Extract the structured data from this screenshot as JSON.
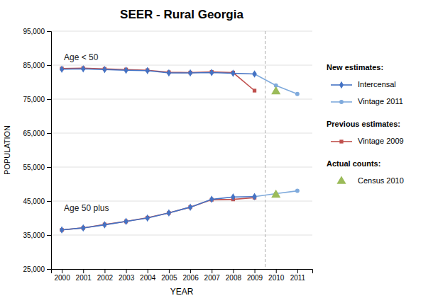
{
  "chart_data": {
    "type": "line",
    "title": "SEER - Rural Georgia",
    "x_label": "YEAR",
    "y_label": "POPULATION",
    "xlim": [
      1999.5,
      2011.7
    ],
    "xticks": [
      2000,
      2001,
      2002,
      2003,
      2004,
      2005,
      2006,
      2007,
      2008,
      2009,
      2010,
      2011
    ],
    "ylim": [
      25000,
      95000
    ],
    "yticks": [
      {
        "value": 25000,
        "label": "25,000"
      },
      {
        "value": 35000,
        "label": "35,000"
      },
      {
        "value": 45000,
        "label": "45,000"
      },
      {
        "value": 55000,
        "label": "55,000"
      },
      {
        "value": 65000,
        "label": "65,000"
      },
      {
        "value": 75000,
        "label": "75,000"
      },
      {
        "value": 85000,
        "label": "85,000"
      },
      {
        "value": 95000,
        "label": "95,000"
      }
    ],
    "grid": "y",
    "series": [
      {
        "name": "Intercensal",
        "type": "line",
        "color": "#4472C4",
        "marker": "diamond",
        "x": [
          2000,
          2001,
          2002,
          2003,
          2004,
          2005,
          2006,
          2007,
          2008,
          2009
        ],
        "values": [
          83800,
          83900,
          83700,
          83500,
          83400,
          82700,
          82700,
          82800,
          82600,
          82400
        ]
      },
      {
        "name": "Vintage 2011",
        "type": "line",
        "color": "#7FAADC",
        "marker": "circle",
        "x": [
          2009,
          2010,
          2011
        ],
        "values": [
          82400,
          79000,
          76500
        ]
      },
      {
        "name": "Vintage 2009",
        "type": "line",
        "color": "#C0504D",
        "marker": "square",
        "x": [
          2000,
          2001,
          2002,
          2003,
          2004,
          2005,
          2006,
          2007,
          2008,
          2009
        ],
        "values": [
          84000,
          84100,
          83900,
          83700,
          83500,
          82900,
          82800,
          83000,
          82800,
          77500
        ]
      },
      {
        "name": "Census 2010",
        "type": "scatter",
        "color": "#9BBB59",
        "marker": "triangle",
        "x": [
          2010
        ],
        "values": [
          77200
        ]
      },
      {
        "name": "Intercensal",
        "type": "line",
        "color": "#4472C4",
        "marker": "diamond",
        "x": [
          2000,
          2001,
          2002,
          2003,
          2004,
          2005,
          2006,
          2007,
          2008,
          2009
        ],
        "values": [
          36500,
          37100,
          38000,
          39000,
          40000,
          41500,
          43200,
          45500,
          46200,
          46300
        ]
      },
      {
        "name": "Vintage 2011",
        "type": "line",
        "color": "#7FAADC",
        "marker": "circle",
        "x": [
          2009,
          2010,
          2011
        ],
        "values": [
          46300,
          47200,
          48000
        ]
      },
      {
        "name": "Vintage 2009",
        "type": "line",
        "color": "#C0504D",
        "marker": "square",
        "x": [
          2000,
          2001,
          2002,
          2003,
          2004,
          2005,
          2006,
          2007,
          2008,
          2009
        ],
        "values": [
          36500,
          37100,
          38100,
          39000,
          40100,
          41500,
          43200,
          45400,
          45500,
          46000
        ]
      },
      {
        "name": "Census 2010",
        "type": "scatter",
        "color": "#9BBB59",
        "marker": "triangle",
        "x": [
          2010
        ],
        "values": [
          46800
        ]
      }
    ],
    "separator_x": 2009.5,
    "annotations": [
      {
        "text": "Age < 50",
        "x": 2000.1,
        "y": 86500
      },
      {
        "text": "Age 50 plus",
        "x": 2000.1,
        "y": 42000
      }
    ],
    "legend_groups": [
      {
        "title": "New estimates:",
        "series": [
          0,
          1
        ]
      },
      {
        "title": "Previous estimates:",
        "series": [
          2
        ]
      },
      {
        "title": "Actual counts:",
        "series": [
          3
        ]
      }
    ]
  }
}
